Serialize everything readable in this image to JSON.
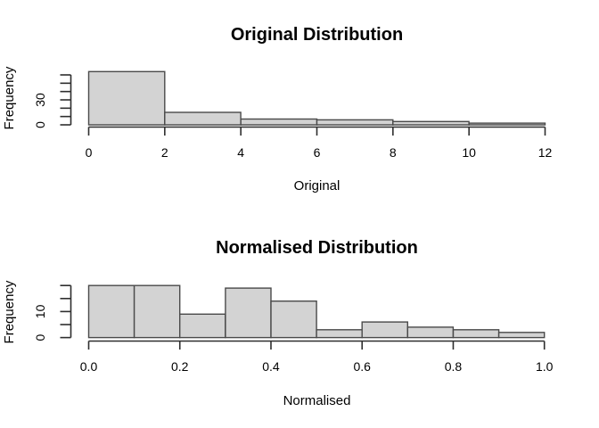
{
  "figure": {
    "background": "#ffffff",
    "axis_color": "#2e2e2e",
    "text_color": "#000000"
  },
  "chart_data": [
    {
      "type": "bar",
      "subtype": "histogram",
      "title": "Original Distribution",
      "xlabel": "Original",
      "ylabel": "Frequency",
      "bin_edges": [
        0,
        2,
        4,
        6,
        8,
        10,
        12
      ],
      "counts": [
        64,
        15,
        7,
        6,
        4,
        2
      ],
      "xlim": [
        0,
        12
      ],
      "ylim": [
        0,
        60
      ],
      "x_ticks": [
        0,
        2,
        4,
        6,
        8,
        10,
        12
      ],
      "x_tick_labels": [
        "0",
        "2",
        "4",
        "6",
        "8",
        "10",
        "12"
      ],
      "y_ticks": [
        0,
        10,
        20,
        30,
        40,
        50,
        60
      ],
      "y_tick_labels": [
        "0",
        "",
        "",
        "30",
        "",
        "",
        ""
      ],
      "grid": false,
      "legend": "none",
      "bar_fill": "#d3d3d3",
      "bar_border": "#4a4a4a"
    },
    {
      "type": "bar",
      "subtype": "histogram",
      "title": "Normalised Distribution",
      "xlabel": "Normalised",
      "ylabel": "Frequency",
      "bin_edges": [
        0,
        0.1,
        0.2,
        0.3,
        0.4,
        0.5,
        0.6,
        0.7,
        0.8,
        0.9,
        1.0
      ],
      "counts": [
        20,
        20,
        9,
        19,
        14,
        3,
        6,
        4,
        3,
        2
      ],
      "xlim": [
        0,
        1
      ],
      "ylim": [
        0,
        20
      ],
      "x_ticks": [
        0,
        0.2,
        0.4,
        0.6,
        0.8,
        1.0
      ],
      "x_tick_labels": [
        "0.0",
        "0.2",
        "0.4",
        "0.6",
        "0.8",
        "1.0"
      ],
      "y_ticks": [
        0,
        5,
        10,
        15,
        20
      ],
      "y_tick_labels": [
        "0",
        "",
        "10",
        "",
        ""
      ],
      "grid": false,
      "legend": "none",
      "bar_fill": "#d3d3d3",
      "bar_border": "#4a4a4a"
    }
  ]
}
